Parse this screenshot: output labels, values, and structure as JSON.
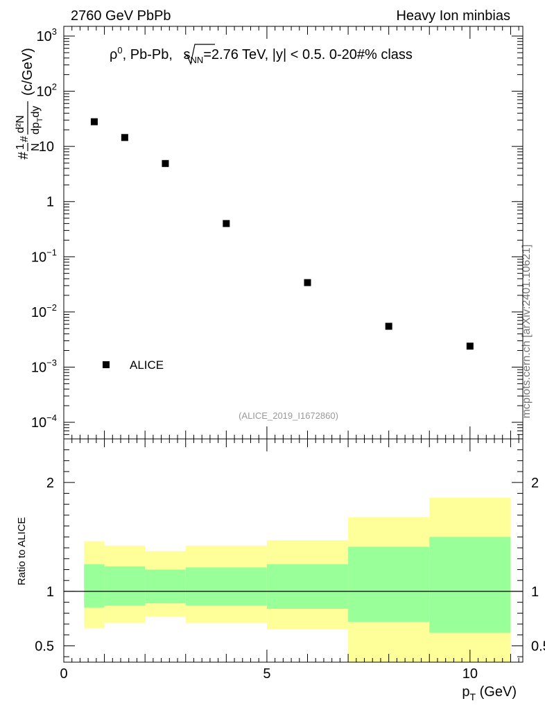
{
  "header": {
    "left": "2760 GeV PbPb",
    "right": "Heavy Ion minbias"
  },
  "side_label": "mcplots.cern.ch [arXiv:2401.10621]",
  "chart_data": [
    {
      "type": "scatter",
      "panel": "main",
      "title_prefix": "ρ",
      "title_sup": "0",
      "title_mid": ", Pb-Pb, ",
      "title_sqrt": "s",
      "title_sub": "NN",
      "title_suffix": "=2.76 TeV, |y| < 0.5. 0-20#% class",
      "ylabel": "#frac{1}{N}#frac{d²N}{dp_{T}dy} (c/GeV)",
      "ylabel_parts": {
        "hash": "#",
        "one": "1",
        "N": "N",
        "hash2": "#",
        "num": "d²N",
        "den_dp": "dp",
        "den_T": "T",
        "den_dy": "dy",
        "units": "(c/GeV)"
      },
      "yscale": "log",
      "ylim": [
        5e-05,
        1500
      ],
      "xlim": [
        0,
        11.3
      ],
      "y_tick_labels": [
        {
          "base": "10",
          "exp": "3",
          "value": 1000
        },
        {
          "base": "10",
          "exp": "2",
          "value": 100
        },
        {
          "base": "10",
          "exp": "",
          "value": 10
        },
        {
          "base": "1",
          "exp": "",
          "value": 1
        },
        {
          "base": "10",
          "exp": "−1",
          "value": 0.1
        },
        {
          "base": "10",
          "exp": "−2",
          "value": 0.01
        },
        {
          "base": "10",
          "exp": "−3",
          "value": 0.001
        },
        {
          "base": "10",
          "exp": "−4",
          "value": 0.0001
        }
      ],
      "series": [
        {
          "name": "ALICE",
          "x": [
            0.75,
            1.5,
            2.5,
            4.0,
            6.0,
            8.0,
            10.0
          ],
          "y": [
            28,
            14.5,
            4.9,
            0.4,
            0.034,
            0.0055,
            0.0024
          ]
        }
      ],
      "legend": {
        "label": "ALICE",
        "placement": "bottom-left"
      },
      "watermark": "(ALICE_2019_I1672860)"
    },
    {
      "type": "area",
      "panel": "ratio",
      "ylabel": "Ratio to ALICE",
      "xlabel_main": "p",
      "xlabel_sub": "T",
      "xlabel_units": " (GeV)",
      "xlim": [
        0,
        11.3
      ],
      "ylim": [
        0.35,
        2.4
      ],
      "x_tick_labels": [
        "0",
        "5",
        "10"
      ],
      "x_tick_values": [
        0,
        5,
        10
      ],
      "y_tick_labels": [
        "0.5",
        "1",
        "2"
      ],
      "y_tick_values": [
        0.5,
        1,
        2
      ],
      "reference_line": 1,
      "bins": [
        {
          "x0": 0.5,
          "x1": 1.0,
          "inner": [
            0.85,
            1.25
          ],
          "outer": [
            0.66,
            1.46
          ]
        },
        {
          "x0": 1.0,
          "x1": 2.0,
          "inner": [
            0.87,
            1.23
          ],
          "outer": [
            0.71,
            1.42
          ]
        },
        {
          "x0": 2.0,
          "x1": 3.0,
          "inner": [
            0.89,
            1.2
          ],
          "outer": [
            0.77,
            1.37
          ]
        },
        {
          "x0": 3.0,
          "x1": 5.0,
          "inner": [
            0.87,
            1.22
          ],
          "outer": [
            0.71,
            1.42
          ]
        },
        {
          "x0": 5.0,
          "x1": 7.0,
          "inner": [
            0.84,
            1.25
          ],
          "outer": [
            0.65,
            1.47
          ]
        },
        {
          "x0": 7.0,
          "x1": 9.0,
          "inner": [
            0.72,
            1.41
          ],
          "outer": [
            0.35,
            1.68
          ]
        },
        {
          "x0": 9.0,
          "x1": 11.0,
          "inner": [
            0.62,
            1.5
          ],
          "outer": [
            0.35,
            1.86
          ]
        }
      ],
      "colors": {
        "inner": "#99ff99",
        "outer": "#ffff99",
        "line": "#000000"
      }
    }
  ]
}
